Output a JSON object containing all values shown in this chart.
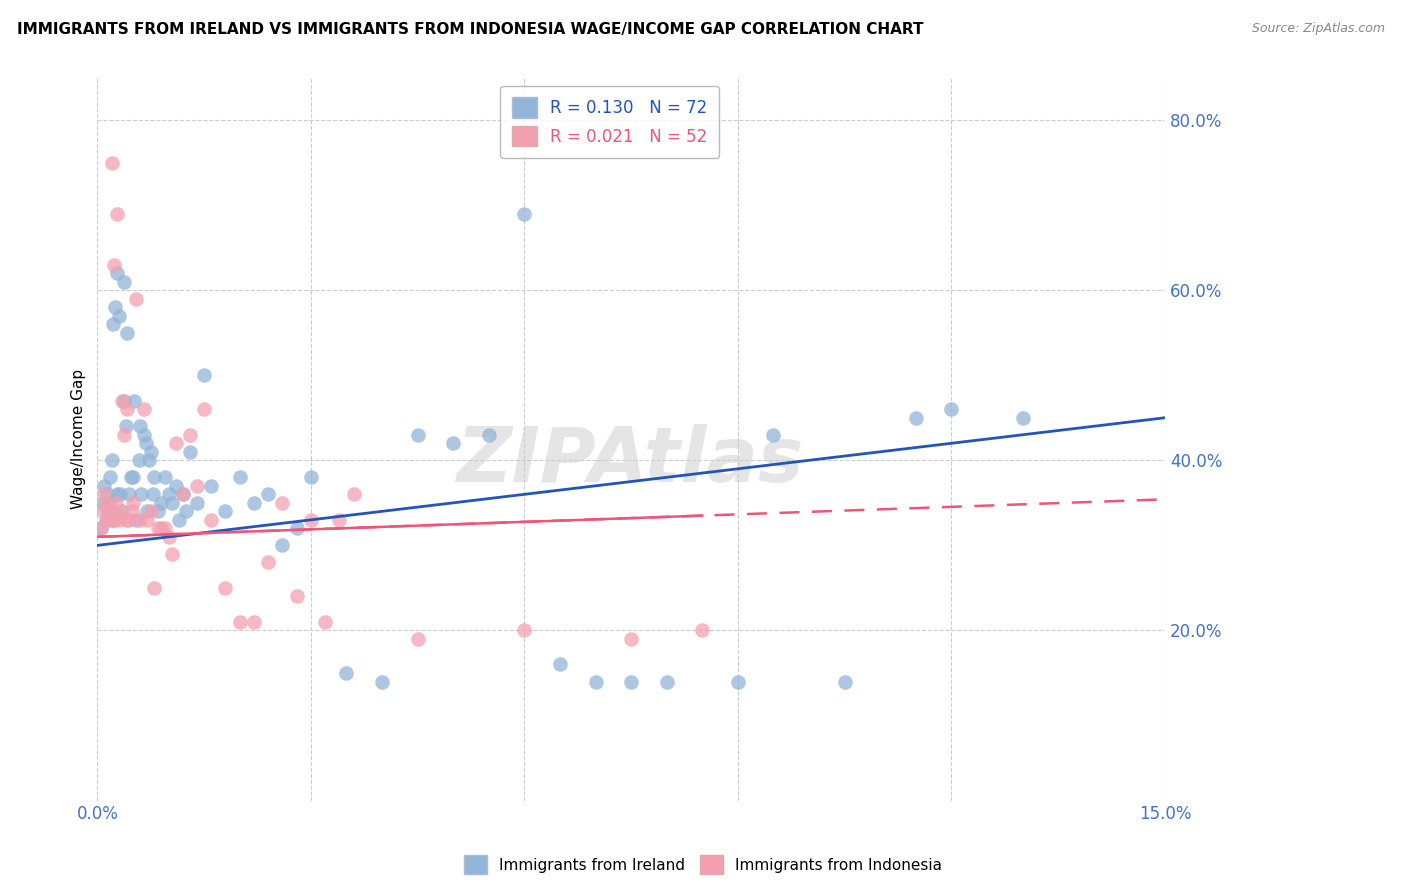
{
  "title": "IMMIGRANTS FROM IRELAND VS IMMIGRANTS FROM INDONESIA WAGE/INCOME GAP CORRELATION CHART",
  "source": "Source: ZipAtlas.com",
  "ylabel": "Wage/Income Gap",
  "xlim": [
    0.0,
    15.0
  ],
  "ylim": [
    0.0,
    85.0
  ],
  "yticks": [
    20.0,
    40.0,
    60.0,
    80.0
  ],
  "xticks": [
    0.0,
    3.0,
    6.0,
    9.0,
    12.0,
    15.0
  ],
  "ireland_color": "#92B4D7",
  "indonesia_color": "#F4A0B0",
  "ireland_R": 0.13,
  "ireland_N": 72,
  "indonesia_R": 0.021,
  "indonesia_N": 52,
  "trend_ireland_color": "#2255BB",
  "trend_indonesia_color": "#EE5577",
  "watermark": "ZIPAtlas",
  "ireland_trend": [
    0.0,
    15.0,
    30.0,
    45.0
  ],
  "indonesia_trend": [
    0.0,
    8.5,
    31.0,
    33.5
  ],
  "ireland_points_x": [
    0.05,
    0.08,
    0.1,
    0.12,
    0.13,
    0.15,
    0.17,
    0.18,
    0.2,
    0.22,
    0.24,
    0.25,
    0.27,
    0.28,
    0.3,
    0.32,
    0.35,
    0.37,
    0.38,
    0.4,
    0.42,
    0.45,
    0.47,
    0.5,
    0.52,
    0.55,
    0.58,
    0.6,
    0.62,
    0.65,
    0.68,
    0.7,
    0.72,
    0.75,
    0.78,
    0.8,
    0.85,
    0.9,
    0.95,
    1.0,
    1.05,
    1.1,
    1.15,
    1.2,
    1.25,
    1.3,
    1.4,
    1.5,
    1.6,
    1.8,
    2.0,
    2.2,
    2.4,
    2.6,
    2.8,
    3.0,
    3.5,
    4.0,
    4.5,
    5.0,
    5.5,
    6.0,
    6.5,
    7.0,
    7.5,
    8.0,
    9.0,
    9.5,
    10.5,
    11.5,
    12.0,
    13.0
  ],
  "ireland_points_y": [
    32.0,
    35.0,
    37.0,
    33.0,
    36.0,
    34.0,
    35.0,
    38.0,
    40.0,
    56.0,
    33.0,
    58.0,
    36.0,
    62.0,
    57.0,
    36.0,
    34.0,
    47.0,
    61.0,
    44.0,
    55.0,
    36.0,
    38.0,
    38.0,
    47.0,
    33.0,
    40.0,
    44.0,
    36.0,
    43.0,
    42.0,
    34.0,
    40.0,
    41.0,
    36.0,
    38.0,
    34.0,
    35.0,
    38.0,
    36.0,
    35.0,
    37.0,
    33.0,
    36.0,
    34.0,
    41.0,
    35.0,
    50.0,
    37.0,
    34.0,
    38.0,
    35.0,
    36.0,
    30.0,
    32.0,
    38.0,
    15.0,
    14.0,
    43.0,
    42.0,
    43.0,
    69.0,
    16.0,
    14.0,
    14.0,
    14.0,
    14.0,
    43.0,
    14.0,
    45.0,
    46.0,
    45.0
  ],
  "indonesia_points_x": [
    0.05,
    0.08,
    0.1,
    0.12,
    0.14,
    0.16,
    0.18,
    0.2,
    0.22,
    0.24,
    0.26,
    0.28,
    0.3,
    0.32,
    0.35,
    0.38,
    0.4,
    0.42,
    0.45,
    0.48,
    0.5,
    0.55,
    0.6,
    0.65,
    0.7,
    0.75,
    0.8,
    0.85,
    0.9,
    0.95,
    1.0,
    1.05,
    1.1,
    1.2,
    1.3,
    1.4,
    1.5,
    1.6,
    1.8,
    2.0,
    2.2,
    2.4,
    2.6,
    2.8,
    3.0,
    3.2,
    3.4,
    3.6,
    4.5,
    6.0,
    7.5,
    8.5
  ],
  "indonesia_points_y": [
    32.0,
    34.0,
    36.0,
    35.0,
    33.0,
    34.0,
    33.0,
    75.0,
    33.0,
    63.0,
    35.0,
    69.0,
    33.0,
    34.0,
    47.0,
    43.0,
    33.0,
    46.0,
    33.0,
    34.0,
    35.0,
    59.0,
    33.0,
    46.0,
    33.0,
    34.0,
    25.0,
    32.0,
    32.0,
    32.0,
    31.0,
    29.0,
    42.0,
    36.0,
    43.0,
    37.0,
    46.0,
    33.0,
    25.0,
    21.0,
    21.0,
    28.0,
    35.0,
    24.0,
    33.0,
    21.0,
    33.0,
    36.0,
    19.0,
    20.0,
    19.0,
    20.0
  ]
}
